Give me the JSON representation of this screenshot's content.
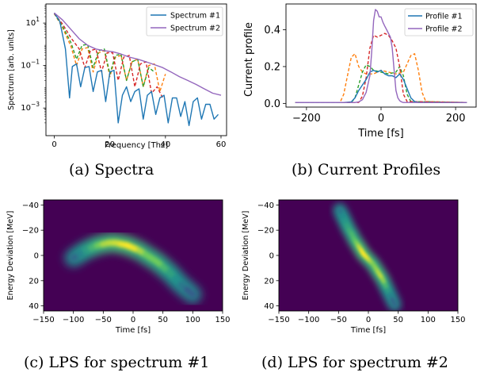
{
  "captions": {
    "a": "(a) Spectra",
    "b": "(b) Current Profiles",
    "c": "(c) LPS for spectrum #1",
    "d": "(d) LPS for spectrum #2"
  },
  "colors": {
    "series1": "#1f77b4",
    "series2": "#9467bd",
    "dashed": [
      "#ff7f0e",
      "#2ca02c",
      "#d62728"
    ],
    "heatmap_bg": "#440154"
  },
  "chart_data": [
    {
      "id": "a",
      "type": "line",
      "xlabel": "Frequency [Thz]",
      "ylabel": "Spectrum [arb. units]",
      "x_ticks": [
        0,
        20,
        40,
        60
      ],
      "y_ticks": [
        "10^1",
        "10^-1",
        "10^-3"
      ],
      "xlim": [
        -3,
        62
      ],
      "ylim_log10": [
        -4.3,
        1.9
      ],
      "y_scale": "log",
      "legend_position": "top-right",
      "series": [
        {
          "name": "Spectrum #1",
          "color": "#1f77b4",
          "style": "solid",
          "x": [
            0,
            2,
            4,
            5.5,
            6.5,
            8,
            9.5,
            11,
            12.5,
            14,
            15.5,
            17,
            18.5,
            20,
            21.5,
            23,
            24.5,
            26,
            27.5,
            29,
            30.5,
            32,
            33.5,
            35,
            36.5,
            38,
            39.5,
            41,
            42.5,
            44,
            45.5,
            47,
            48.5,
            50,
            51.5,
            53,
            54.5,
            56,
            57.5,
            59
          ],
          "y": [
            30,
            12,
            0.6,
            0.003,
            0.09,
            0.12,
            0.01,
            0.08,
            0.09,
            0.006,
            0.05,
            0.06,
            0.002,
            0.05,
            0.06,
            0.0002,
            0.004,
            0.01,
            0.002,
            0.006,
            0.008,
            0.0003,
            0.004,
            0.006,
            0.0005,
            0.003,
            0.004,
            0.0002,
            0.003,
            0.003,
            0.0004,
            0.002,
            0.00015,
            0.002,
            0.003,
            0.0003,
            0.0015,
            0.0015,
            0.0003,
            0.0005
          ]
        },
        {
          "name": "Spectrum #2",
          "color": "#9467bd",
          "style": "solid",
          "x": [
            0,
            3,
            6,
            9,
            12,
            15,
            18,
            21,
            24,
            27,
            30,
            33,
            36,
            39,
            42,
            45,
            48,
            51,
            54,
            57,
            60
          ],
          "y": [
            30,
            14,
            5,
            1.8,
            0.9,
            0.6,
            0.5,
            0.45,
            0.35,
            0.25,
            0.2,
            0.15,
            0.11,
            0.08,
            0.05,
            0.03,
            0.02,
            0.013,
            0.008,
            0.005,
            0.004
          ]
        },
        {
          "name": "",
          "color": "#ff7f0e",
          "style": "dashed",
          "x": [
            0,
            3,
            6,
            8,
            10,
            12,
            14,
            16,
            18,
            20,
            22,
            24,
            26,
            28,
            30,
            32,
            34,
            36,
            38,
            40
          ],
          "y": [
            28,
            6,
            0.8,
            0.1,
            0.6,
            0.7,
            0.05,
            0.4,
            0.5,
            0.03,
            0.25,
            0.3,
            0.02,
            0.15,
            0.2,
            0.01,
            0.1,
            0.12,
            0.006,
            0.04
          ]
        },
        {
          "name": "",
          "color": "#2ca02c",
          "style": "dashed",
          "x": [
            0,
            3,
            6,
            8,
            10,
            12,
            14,
            16,
            18,
            20,
            22,
            24,
            26,
            28,
            30,
            32,
            34,
            36
          ],
          "y": [
            28,
            7,
            1.2,
            0.2,
            0.9,
            1.0,
            0.08,
            0.5,
            0.6,
            0.04,
            0.3,
            0.35,
            0.02,
            0.15,
            0.2,
            0.01,
            0.08,
            0.05
          ]
        },
        {
          "name": "",
          "color": "#d62728",
          "style": "dashed",
          "x": [
            0,
            3,
            6,
            9,
            11,
            13,
            15,
            17,
            19,
            21,
            23,
            25,
            27,
            29,
            31,
            33,
            35,
            37,
            39
          ],
          "y": [
            28,
            9,
            2,
            0.6,
            0.08,
            0.5,
            0.6,
            0.05,
            0.4,
            0.4,
            0.02,
            0.25,
            0.3,
            0.01,
            0.12,
            0.15,
            0.005,
            0.01,
            0.003
          ]
        }
      ]
    },
    {
      "id": "b",
      "type": "line",
      "xlabel": "Time [fs]",
      "ylabel": "Current profile",
      "x_ticks": [
        -200,
        0,
        200
      ],
      "y_ticks": [
        0.0,
        0.2,
        0.4
      ],
      "xlim": [
        -255,
        255
      ],
      "ylim": [
        -0.02,
        0.54
      ],
      "legend_position": "top-right",
      "series": [
        {
          "name": "Profile #1",
          "color": "#1f77b4",
          "style": "solid",
          "x": [
            -230,
            -100,
            -80,
            -70,
            -60,
            -50,
            -40,
            -30,
            -20,
            -10,
            0,
            10,
            20,
            30,
            40,
            50,
            60,
            70,
            80,
            90,
            100,
            230
          ],
          "y": [
            0.005,
            0.005,
            0.008,
            0.03,
            0.07,
            0.1,
            0.13,
            0.17,
            0.18,
            0.17,
            0.18,
            0.16,
            0.15,
            0.15,
            0.14,
            0.16,
            0.13,
            0.08,
            0.03,
            0.01,
            0.005,
            0.005
          ]
        },
        {
          "name": "Profile #2",
          "color": "#9467bd",
          "style": "solid",
          "x": [
            -230,
            -70,
            -60,
            -50,
            -40,
            -30,
            -25,
            -20,
            -15,
            -10,
            -5,
            0,
            5,
            10,
            15,
            20,
            25,
            30,
            35,
            40,
            45,
            50,
            55,
            60,
            230
          ],
          "y": [
            0.005,
            0.005,
            0.008,
            0.02,
            0.06,
            0.15,
            0.28,
            0.45,
            0.51,
            0.5,
            0.47,
            0.47,
            0.44,
            0.42,
            0.4,
            0.38,
            0.36,
            0.3,
            0.18,
            0.07,
            0.03,
            0.015,
            0.008,
            0.005,
            0.005
          ]
        },
        {
          "name": "",
          "color": "#ff7f0e",
          "style": "dashed",
          "x": [
            -230,
            -110,
            -100,
            -90,
            -80,
            -70,
            -60,
            -50,
            -40,
            -20,
            0,
            20,
            40,
            60,
            80,
            90,
            100,
            110,
            120,
            230
          ],
          "y": [
            0.005,
            0.005,
            0.05,
            0.15,
            0.25,
            0.27,
            0.2,
            0.17,
            0.16,
            0.16,
            0.18,
            0.17,
            0.16,
            0.17,
            0.26,
            0.27,
            0.18,
            0.06,
            0.01,
            0.005
          ]
        },
        {
          "name": "",
          "color": "#2ca02c",
          "style": "dashed",
          "x": [
            -230,
            -80,
            -70,
            -60,
            -50,
            -40,
            -30,
            -20,
            0,
            20,
            40,
            50,
            60,
            70,
            80,
            230
          ],
          "y": [
            0.005,
            0.005,
            0.03,
            0.1,
            0.17,
            0.21,
            0.2,
            0.18,
            0.17,
            0.16,
            0.17,
            0.2,
            0.15,
            0.05,
            0.01,
            0.005
          ]
        },
        {
          "name": "",
          "color": "#d62728",
          "style": "dashed",
          "x": [
            -230,
            -60,
            -50,
            -40,
            -30,
            -20,
            -10,
            0,
            10,
            20,
            30,
            40,
            50,
            60,
            70,
            230
          ],
          "y": [
            0.005,
            0.005,
            0.04,
            0.14,
            0.3,
            0.37,
            0.36,
            0.37,
            0.38,
            0.37,
            0.34,
            0.3,
            0.2,
            0.05,
            0.01,
            0.005
          ]
        }
      ]
    },
    {
      "id": "c",
      "type": "heatmap",
      "xlabel": "Time [fs]",
      "ylabel": "Energy Deviation [MeV]",
      "x_ticks": [
        -150,
        -100,
        -50,
        0,
        50,
        100,
        150
      ],
      "y_ticks": [
        -40,
        -20,
        0,
        20,
        40
      ],
      "xlim": [
        -150,
        150
      ],
      "ylim": [
        -44,
        44
      ],
      "y_inverted": true,
      "colormap": "viridis",
      "ridge": {
        "t": [
          -100,
          -90,
          -80,
          -70,
          -60,
          -50,
          -40,
          -30,
          -20,
          -10,
          0,
          10,
          20,
          30,
          40,
          50,
          60,
          70,
          80,
          90,
          100
        ],
        "e": [
          2,
          -1,
          -4,
          -6,
          -8,
          -9,
          -10,
          -10,
          -9,
          -8,
          -6,
          -4,
          -1,
          2,
          5,
          9,
          13,
          18,
          23,
          27,
          31
        ],
        "intensity": [
          0.3,
          0.4,
          0.5,
          0.6,
          0.7,
          0.85,
          0.9,
          0.9,
          0.95,
          1.0,
          1.0,
          0.95,
          0.8,
          0.75,
          0.8,
          0.75,
          0.6,
          0.55,
          0.45,
          0.35,
          0.25
        ]
      }
    },
    {
      "id": "d",
      "type": "heatmap",
      "xlabel": "Time [fs]",
      "ylabel": "Energy Deviation [MeV]",
      "x_ticks": [
        -150,
        -100,
        -50,
        0,
        50,
        100,
        150
      ],
      "y_ticks": [
        -40,
        -20,
        0,
        20,
        40
      ],
      "xlim": [
        -150,
        150
      ],
      "ylim": [
        -44,
        44
      ],
      "y_inverted": true,
      "colormap": "viridis",
      "ridge": {
        "t": [
          -48,
          -44,
          -40,
          -36,
          -32,
          -28,
          -24,
          -20,
          -16,
          -12,
          -8,
          -4,
          0,
          4,
          8,
          12,
          16,
          20,
          24,
          28,
          32,
          36,
          40,
          44
        ],
        "e": [
          -36,
          -32,
          -28,
          -24,
          -20,
          -17,
          -13,
          -10,
          -7,
          -4,
          -1,
          1,
          3,
          5,
          7,
          10,
          13,
          16,
          19,
          23,
          27,
          31,
          35,
          39
        ],
        "intensity": [
          0.35,
          0.45,
          0.5,
          0.55,
          0.6,
          0.65,
          0.7,
          0.75,
          0.85,
          0.95,
          1.0,
          1.0,
          0.95,
          0.9,
          0.8,
          0.8,
          0.85,
          0.9,
          0.9,
          0.75,
          0.6,
          0.5,
          0.4,
          0.3
        ]
      }
    }
  ]
}
